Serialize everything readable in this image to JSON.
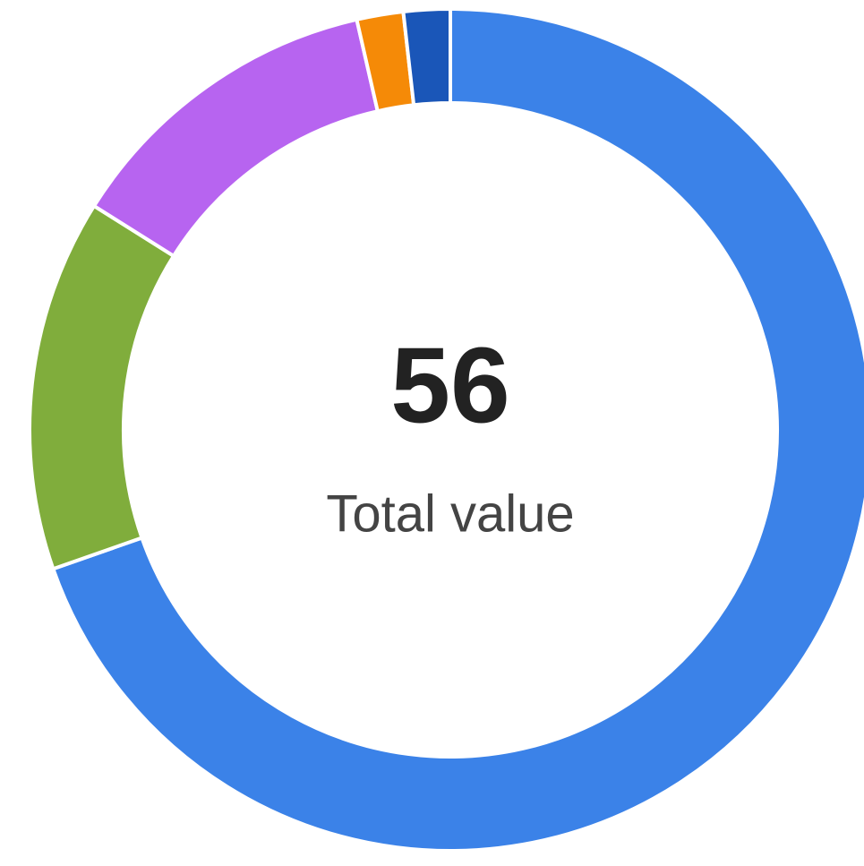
{
  "chart_data": {
    "type": "donut",
    "values": [
      39,
      8,
      7,
      1,
      1
    ],
    "colors": [
      "#3b82e8",
      "#80ad3c",
      "#b764f0",
      "#f58a07",
      "#1a56b8"
    ],
    "total": 56,
    "center_label": "Total value"
  }
}
